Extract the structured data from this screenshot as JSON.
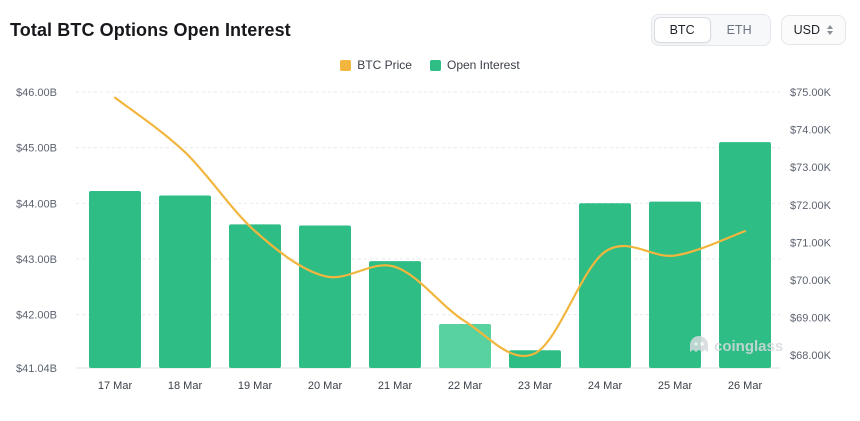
{
  "header": {
    "title": "Total BTC Options Open Interest",
    "toggle": [
      "BTC",
      "ETH"
    ],
    "active_toggle": "BTC",
    "currency": "USD"
  },
  "chart_data": {
    "type": "bar+line",
    "title": "Total BTC Options Open Interest",
    "categories": [
      "17 Mar",
      "18 Mar",
      "19 Mar",
      "20 Mar",
      "21 Mar",
      "22 Mar",
      "23 Mar",
      "24 Mar",
      "25 Mar",
      "26 Mar"
    ],
    "left_axis": {
      "unit": "B",
      "tick_labels": [
        "$46.00B",
        "$45.00B",
        "$44.00B",
        "$43.00B",
        "$42.00B",
        "$41.04B"
      ],
      "tick_values": [
        46.0,
        45.0,
        44.0,
        43.0,
        42.0,
        41.04
      ],
      "min": 41.04,
      "max": 46.0
    },
    "right_axis": {
      "unit": "K",
      "tick_labels": [
        "$75.00K",
        "$74.00K",
        "$73.00K",
        "$72.00K",
        "$71.00K",
        "$70.00K",
        "$69.00K",
        "$68.00K"
      ],
      "tick_values": [
        75,
        74,
        73,
        72,
        71,
        70,
        69,
        68
      ],
      "max_shown": 75,
      "min_shown": 68
    },
    "series": [
      {
        "name": "BTC Price",
        "type": "line",
        "axis": "right",
        "color": "#f2b63e",
        "values": [
          74.85,
          73.4,
          71.3,
          70.1,
          70.35,
          68.9,
          68.05,
          70.75,
          70.65,
          71.3
        ]
      },
      {
        "name": "Open Interest",
        "type": "bar",
        "axis": "left",
        "color": "#2ebd85",
        "highlight_index": 5,
        "highlight_color": "#58d29e",
        "values": [
          44.22,
          44.14,
          43.62,
          43.6,
          42.96,
          41.83,
          41.36,
          44.0,
          44.03,
          45.1
        ]
      }
    ],
    "grid": "dashed-horizontal",
    "legend_position": "top-center",
    "watermark": "coinglass"
  }
}
